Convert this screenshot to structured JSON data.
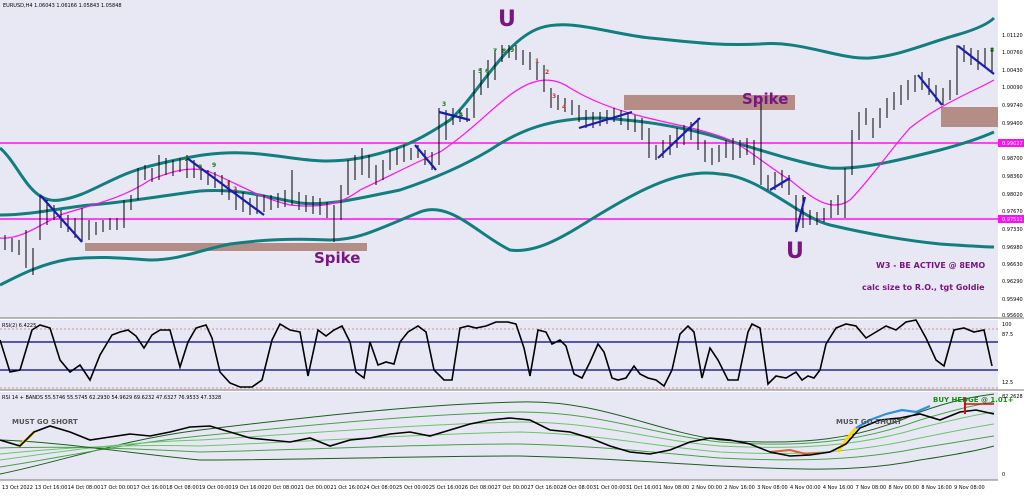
{
  "main_panel": {
    "header": "EURUSD,H4  1.06043 1.06166 1.05843 1.05848",
    "price_ticks": [
      "1.01120",
      "1.00760",
      "1.00430",
      "1.00090",
      "0.99740",
      "0.99400",
      "0.99027",
      "0.98700",
      "0.98360",
      "0.98020",
      "0.97670",
      "0.97330",
      "0.96980",
      "0.96630",
      "0.96290",
      "0.95940",
      "0.95600"
    ],
    "level_labels": [
      "0.99027",
      "0.97511"
    ],
    "annotations": {
      "u_top": "U",
      "u_bottom": "U",
      "spike_left": "Spike",
      "spike_right": "Spike",
      "note_line1": "W3 - BE ACTIVE @ 8EMO",
      "note_line2": "calc size to R.O., tgt Goldie"
    },
    "counter_labels": [
      "7",
      "8",
      "9",
      "1",
      "2",
      "3",
      "4",
      "5",
      "6",
      "7",
      "8",
      "9",
      "1",
      "2",
      "3",
      "4",
      "5",
      "6",
      "7",
      "8",
      "9",
      "6",
      "5",
      "6",
      "7"
    ]
  },
  "rsi_panel": {
    "header": "RSI(2) 6.4225",
    "ticks": [
      "100",
      "87.5",
      "12.5",
      "0"
    ]
  },
  "bands_panel": {
    "header": "RSI 14 + BANDS 55.5746 55.5745 62.2930 54.9629 69.6232 47.6327 76.9533 47.3328",
    "ticks": [
      "82.2628",
      "0"
    ],
    "annotations": {
      "must_go_short_left": "MUST GO SHORT",
      "must_go_short_right": "MUST GO SHORT",
      "buy_hedge": "BUY HEDGE @ 1.01+"
    }
  },
  "time_axis": [
    "13 Oct 2022",
    "13 Oct 16:00",
    "14 Oct 08:00",
    "17 Oct 00:00",
    "17 Oct 16:00",
    "18 Oct 08:00",
    "19 Oct 00:00",
    "19 Oct 16:00",
    "20 Oct 08:00",
    "21 Oct 00:00",
    "21 Oct 16:00",
    "24 Oct 08:00",
    "25 Oct 00:00",
    "25 Oct 16:00",
    "26 Oct 08:00",
    "27 Oct 00:00",
    "27 Oct 16:00",
    "28 Oct 08:00",
    "31 Oct 00:00",
    "31 Oct 16:00",
    "1 Nov 08:00",
    "2 Nov 00:00",
    "2 Nov 16:00",
    "3 Nov 08:00",
    "4 Nov 00:00",
    "4 Nov 16:00",
    "7 Nov 08:00",
    "8 Nov 00:00",
    "8 Nov 16:00",
    "9 Nov 08:00"
  ],
  "colors": {
    "background": "#e8e8f4",
    "bollinger": "#127e7e",
    "ema": "#ff10f0",
    "level_line": "#ff10f0",
    "zone": "#b48e86",
    "annotation": "#7a1682",
    "trendline": "#1b1bb5",
    "rsi_line": "#000000",
    "rsi_levels": "#00008b",
    "buy_hedge": "#1a8c1a"
  }
}
